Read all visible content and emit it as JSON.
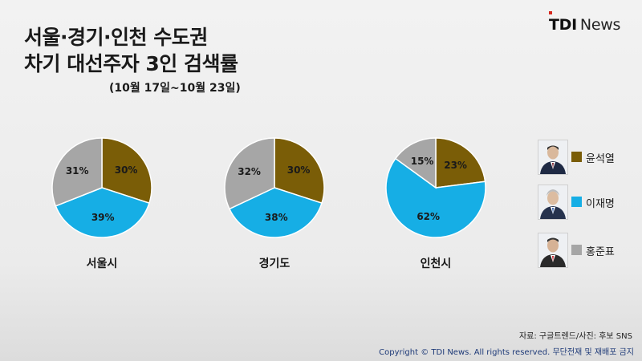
{
  "brand": {
    "name": "TDI",
    "suffix": "News"
  },
  "title": {
    "line1": "서울·경기·인천 수도권",
    "line2": "차기 대선주자 3인 검색률"
  },
  "subtitle": "(10월 17일~10월 23일)",
  "legend": [
    {
      "name": "윤석열",
      "color": "#7a5d07",
      "avatar_icon": "person-photo-icon"
    },
    {
      "name": "이재명",
      "color": "#16aee5",
      "avatar_icon": "person-photo-icon"
    },
    {
      "name": "홍준표",
      "color": "#a6a6a6",
      "avatar_icon": "person-photo-icon"
    }
  ],
  "chart_data": [
    {
      "type": "pie",
      "title": "서울시",
      "categories": [
        "윤석열",
        "이재명",
        "홍준표"
      ],
      "values": [
        30,
        39,
        31
      ],
      "labels": [
        "30%",
        "39%",
        "31%"
      ]
    },
    {
      "type": "pie",
      "title": "경기도",
      "categories": [
        "윤석열",
        "이재명",
        "홍준표"
      ],
      "values": [
        30,
        38,
        32
      ],
      "labels": [
        "30%",
        "38%",
        "32%"
      ]
    },
    {
      "type": "pie",
      "title": "인천시",
      "categories": [
        "윤석열",
        "이재명",
        "홍준표"
      ],
      "values": [
        23,
        62,
        15
      ],
      "labels": [
        "23%",
        "62%",
        "15%"
      ]
    }
  ],
  "footer": {
    "source": "자료: 구글트렌드/사진: 후보 SNS",
    "copyright": "Copyright © TDI News. All rights reserved. 무단전재 및 재배포 금지"
  }
}
